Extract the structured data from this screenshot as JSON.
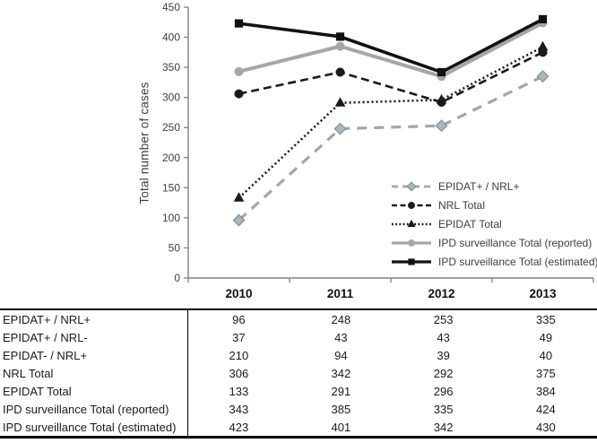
{
  "chart_data": {
    "type": "line",
    "title": "",
    "xlabel": "",
    "ylabel": "Total number of cases",
    "categories": [
      "2010",
      "2011",
      "2012",
      "2013"
    ],
    "ylim": [
      0,
      450
    ],
    "ytick_step": 50,
    "grid": false,
    "legend_position": "inside-lower-right",
    "axis_color": "#808080",
    "tick_label_color": "#404040",
    "series": [
      {
        "name": "EPIDAT+ / NRL+",
        "values": [
          96,
          248,
          253,
          335
        ],
        "color": "#a6a6a6",
        "line_style": "long-dash",
        "marker": "diamond",
        "marker_fill": "#a9b6bc",
        "marker_stroke": "#7c898f"
      },
      {
        "name": "NRL Total",
        "values": [
          306,
          342,
          292,
          375
        ],
        "color": "#1a1a1a",
        "line_style": "dash",
        "marker": "circle"
      },
      {
        "name": "EPIDAT Total",
        "values": [
          133,
          291,
          296,
          384
        ],
        "color": "#1a1a1a",
        "line_style": "dot",
        "marker": "triangle"
      },
      {
        "name": "IPD surveillance Total (reported)",
        "values": [
          343,
          385,
          335,
          424
        ],
        "color": "#a6a6a6",
        "line_style": "solid",
        "marker": "circle"
      },
      {
        "name": "IPD surveillance Total (estimated)",
        "values": [
          423,
          401,
          342,
          430
        ],
        "color": "#111111",
        "line_style": "solid",
        "marker": "square"
      }
    ]
  },
  "table": {
    "column_headers": [
      "2010",
      "2011",
      "2012",
      "2013"
    ],
    "rows": [
      {
        "label": "EPIDAT+ / NRL+",
        "values": [
          "96",
          "248",
          "253",
          "335"
        ]
      },
      {
        "label": "EPIDAT+ / NRL-",
        "values": [
          "37",
          "43",
          "43",
          "49"
        ]
      },
      {
        "label": "EPIDAT- / NRL+",
        "values": [
          "210",
          "94",
          "39",
          "40"
        ]
      },
      {
        "label": "NRL Total",
        "values": [
          "306",
          "342",
          "292",
          "375"
        ]
      },
      {
        "label": "EPIDAT Total",
        "values": [
          "133",
          "291",
          "296",
          "384"
        ]
      },
      {
        "label": "IPD surveillance Total (reported)",
        "values": [
          "343",
          "385",
          "335",
          "424"
        ]
      },
      {
        "label": "IPD surveillance Total (estimated)",
        "values": [
          "423",
          "401",
          "342",
          "430"
        ]
      }
    ]
  }
}
